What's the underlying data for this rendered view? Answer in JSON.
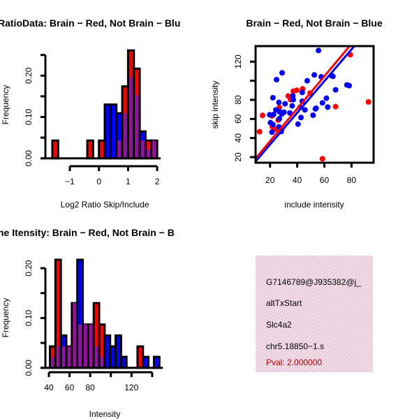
{
  "colors": {
    "red": "#ff0000",
    "blue": "#0000ff",
    "overlap": "#9a10a8",
    "info_bg": "#f7d8f2",
    "pval": "#b00000"
  },
  "chart_data": [
    {
      "type": "bar",
      "subtype": "overlaid-histogram",
      "title": "RatioData: Brain − Red, Not Brain − Blu",
      "xlabel": "Log2 Ratio Skip/Include",
      "ylabel": "Frequency",
      "xlim": [
        -1.7,
        2.15
      ],
      "ylim": [
        0,
        0.25
      ],
      "xticks": [
        -1,
        0,
        1,
        2
      ],
      "xtick_labels": [
        "−1",
        "0",
        "1",
        "2"
      ],
      "yticks": [
        0,
        0.05,
        0.1,
        0.15,
        0.2,
        0.25
      ],
      "ytick_labels": [
        "0.00",
        "",
        "0.10",
        "",
        "0.20",
        ""
      ],
      "bin_start": -1.6,
      "bin_width": 0.2,
      "series": [
        {
          "name": "Brain",
          "color": "red",
          "values": [
            0.043,
            0,
            0,
            0,
            0,
            0,
            0.043,
            0,
            0.043,
            0,
            0,
            0.043,
            0.174,
            0.261,
            0.217,
            0.043,
            0.043,
            0.043
          ]
        },
        {
          "name": "Not Brain",
          "color": "blue",
          "values": [
            0,
            0,
            0,
            0,
            0,
            0,
            0,
            0,
            0,
            0.13,
            0.13,
            0.109,
            0.109,
            0.196,
            0.152,
            0.065,
            0.022,
            0.043
          ]
        }
      ]
    },
    {
      "type": "scatter",
      "title": "Brain − Red, Not Brain − Blue",
      "xlabel": "include intensity",
      "ylabel": "skip intensity",
      "xlim": [
        9.2,
        96.3
      ],
      "ylim": [
        14,
        136.5
      ],
      "xticks": [
        20,
        40,
        60,
        80
      ],
      "xtick_labels": [
        "20",
        "40",
        "60",
        "80"
      ],
      "yticks": [
        20,
        40,
        60,
        80,
        100,
        120
      ],
      "ytick_labels": [
        "20",
        "40",
        "60",
        "80",
        "",
        "120"
      ],
      "series": [
        {
          "name": "Brain",
          "color": "red",
          "points": [
            [
              92.5,
              77.8
            ],
            [
              79.1,
              127.3
            ],
            [
              68.3,
              72.9
            ],
            [
              58.6,
              18.3
            ],
            [
              49.5,
              87.1
            ],
            [
              44,
              91.5
            ],
            [
              39.7,
              90
            ],
            [
              37.1,
              89
            ],
            [
              33.4,
              84.1
            ],
            [
              35.1,
              80.2
            ],
            [
              26.9,
              72
            ],
            [
              14.5,
              63.7
            ],
            [
              12.3,
              46.6
            ],
            [
              21.4,
              63.2
            ],
            [
              26,
              58.8
            ],
            [
              21.7,
              51.7
            ],
            [
              23.8,
              49.3
            ],
            [
              28.6,
              49.3
            ]
          ],
          "fit": {
            "slope": 1.7,
            "intercept": 2.7
          }
        },
        {
          "name": "Not Brain",
          "color": "blue",
          "points": [
            [
              55.7,
              131.7
            ],
            [
              28.9,
              108.3
            ],
            [
              24.8,
              101.2
            ],
            [
              52.6,
              106.1
            ],
            [
              57.7,
              104.1
            ],
            [
              65.4,
              105.4
            ],
            [
              66.3,
              104.6
            ],
            [
              47.4,
              100
            ],
            [
              76.6,
              95.6
            ],
            [
              78.3,
              94.9
            ],
            [
              68.3,
              90.5
            ],
            [
              43.7,
              87.8
            ],
            [
              22.1,
              82.2
            ],
            [
              36.8,
              84.1
            ],
            [
              37.1,
              80.2
            ],
            [
              43.7,
              78.5
            ],
            [
              61.5,
              81.7
            ],
            [
              58.6,
              76.8
            ],
            [
              62.5,
              72.4
            ],
            [
              26.5,
              77.3
            ],
            [
              31.1,
              75.9
            ],
            [
              36.3,
              73.7
            ],
            [
              42.3,
              72.4
            ],
            [
              45.7,
              69.5
            ],
            [
              53.4,
              70.5
            ],
            [
              53.9,
              71.2
            ],
            [
              51.7,
              63.9
            ],
            [
              24.3,
              69.5
            ],
            [
              26.9,
              67.6
            ],
            [
              30.3,
              67.1
            ],
            [
              34.6,
              66.3
            ],
            [
              28.6,
              65.1
            ],
            [
              19.7,
              64.4
            ],
            [
              22.6,
              64.6
            ],
            [
              42.8,
              61.5
            ],
            [
              26.9,
              60.2
            ],
            [
              20.3,
              56.1
            ],
            [
              22.1,
              54.1
            ],
            [
              40.6,
              54.6
            ],
            [
              26.5,
              51.7
            ],
            [
              21.4,
              46.1
            ],
            [
              28.2,
              46.8
            ]
          ],
          "fit": {
            "slope": 1.66,
            "intercept": 0.0
          }
        }
      ]
    },
    {
      "type": "bar",
      "subtype": "overlaid-histogram",
      "title": "ne Itensity: Brain − Red, Not Brain − B",
      "xlabel": "Intensity",
      "ylabel": "Frequency",
      "xlim": [
        40,
        148
      ],
      "ylim": [
        0,
        0.22
      ],
      "xticks": [
        40,
        60,
        80,
        100,
        120,
        140
      ],
      "xtick_labels": [
        "40",
        "60",
        "80",
        "",
        "120",
        ""
      ],
      "yticks": [
        0,
        0.05,
        0.1,
        0.15,
        0.2
      ],
      "ytick_labels": [
        "0.00",
        "",
        "0.10",
        "",
        "0.20"
      ],
      "bin_start": 41,
      "bin_width": 5.3,
      "series": [
        {
          "name": "Brain",
          "color": "red",
          "values": [
            0.043,
            0.217,
            0.043,
            0.043,
            0.13,
            0.087,
            0.087,
            0.087,
            0.13,
            0.087,
            0,
            0,
            0,
            0,
            0,
            0,
            0.043,
            0,
            0,
            0
          ]
        },
        {
          "name": "Not Brain",
          "color": "blue",
          "values": [
            0.022,
            0.043,
            0.065,
            0.043,
            0.13,
            0.217,
            0.087,
            0.087,
            0.043,
            0.022,
            0.065,
            0.043,
            0.065,
            0.022,
            0,
            0,
            0,
            0.022,
            0,
            0.022
          ]
        }
      ]
    }
  ],
  "info_panel": {
    "id": "G7146789@J935382@j_",
    "event_type": "altTxStart",
    "gene": "Slc4a2",
    "location": "chr5.18850−1.s",
    "pval": "Pval: 2.000000"
  }
}
